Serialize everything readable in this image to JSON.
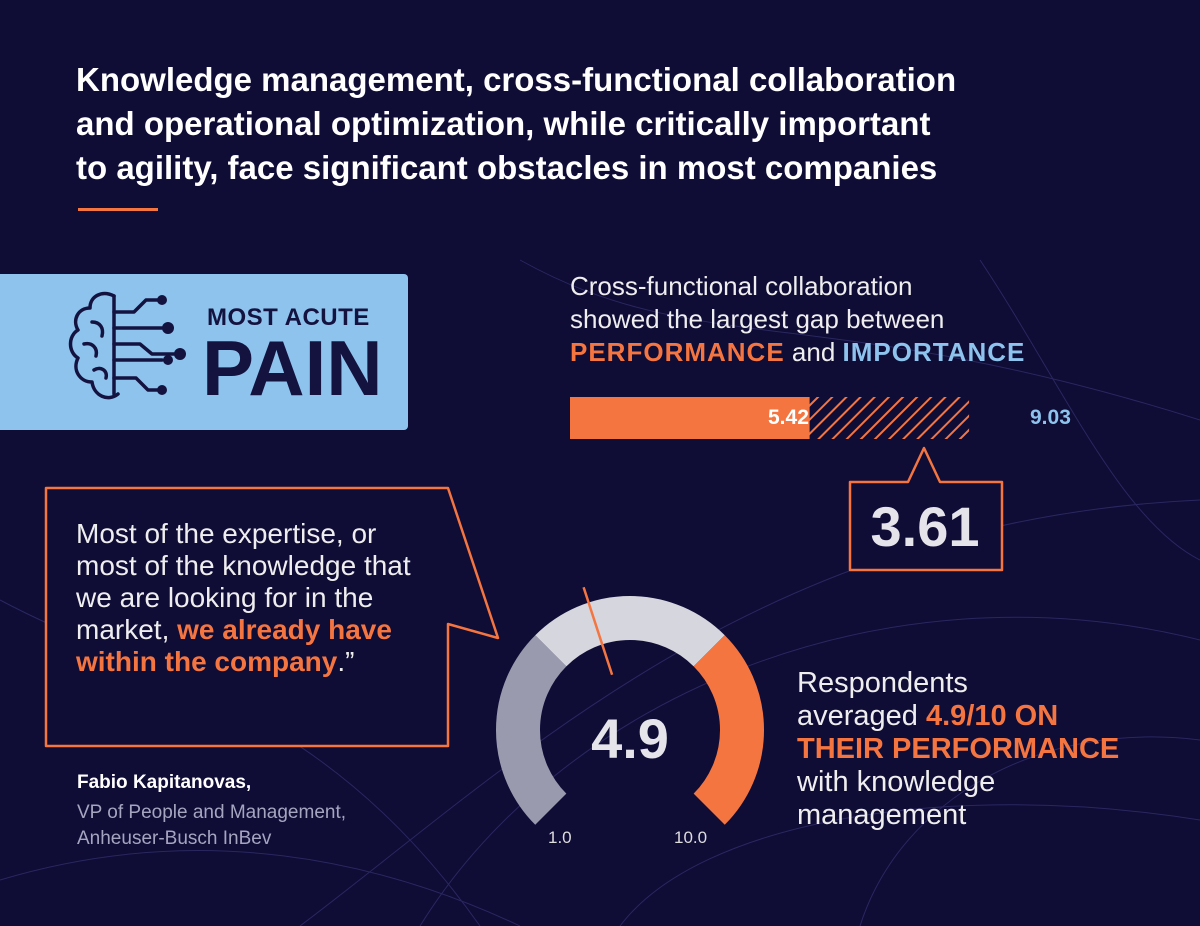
{
  "headline": {
    "line1": "Knowledge management, cross-functional collaboration",
    "line2": "and operational optimization, while critically important",
    "line3": "to agility, face significant obstacles in most companies"
  },
  "pain_badge": {
    "kicker": "MOST ACUTE",
    "word": "PAIN",
    "icon": "brain-circuit-icon"
  },
  "gap_panel": {
    "line1": "Cross-functional collaboration",
    "line2": "showed the largest gap between",
    "performance_word": "PERFORMANCE",
    "connector": " and ",
    "importance_word": "IMPORTANCE"
  },
  "quote": {
    "lead": "Most of the expertise, or most of the knowledge that we are looking for in the market, ",
    "highlight": "we already have within the company",
    "tail": ".”",
    "attribution_name": "Fabio Kapitanovas,",
    "attribution_role": "VP of People and Management,",
    "attribution_company": "Anheuser-Busch InBev"
  },
  "respondents": {
    "line1": "Respondents",
    "line2_lead": "averaged ",
    "line2_highlight": "4.9/10 ON",
    "line3_highlight": "THEIR PERFORMANCE",
    "line4": "with knowledge",
    "line5": "management"
  },
  "colors": {
    "background": "#0f0c36",
    "accent_orange": "#f47540",
    "accent_blue": "#8ec3ee",
    "gauge_light": "#d6d6de",
    "gauge_gray": "#9a9aae"
  },
  "chart_data": [
    {
      "type": "bar",
      "categories": [
        "Cross-functional collaboration"
      ],
      "series": [
        {
          "name": "PERFORMANCE",
          "values": [
            5.42
          ]
        },
        {
          "name": "IMPORTANCE",
          "values": [
            9.03
          ]
        }
      ],
      "value_labels": {
        "performance": "5.42",
        "importance": "9.03"
      },
      "gap": 3.61,
      "gap_label": "3.61",
      "xlim": [
        0,
        10
      ]
    },
    {
      "type": "gauge",
      "value": 4.9,
      "value_label": "4.9",
      "min": 1.0,
      "max": 10.0,
      "min_label": "1.0",
      "max_label": "10.0"
    }
  ]
}
